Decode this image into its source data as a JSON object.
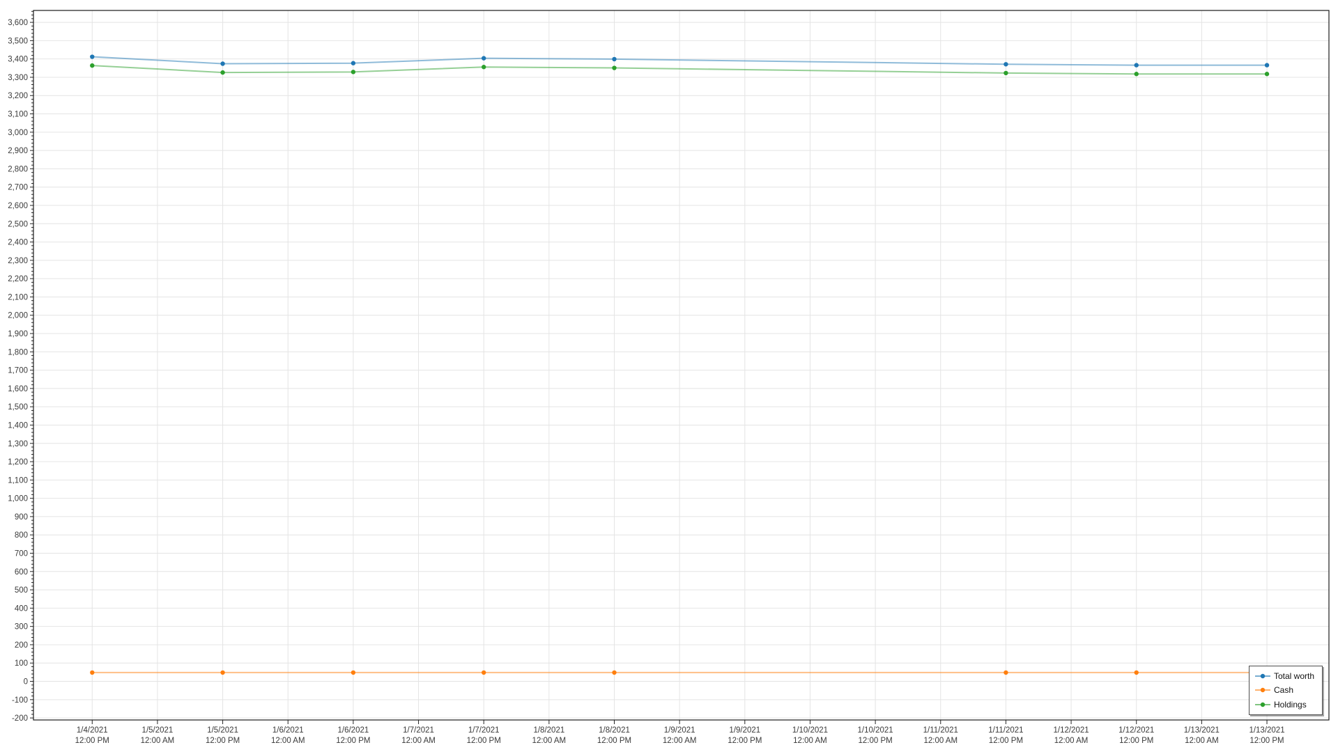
{
  "chart_data": {
    "type": "line",
    "title": "",
    "xlabel": "",
    "ylabel": "",
    "x_axis": {
      "index_min": -0.9,
      "index_max": 18.95,
      "grid": true,
      "tick_labels": [
        {
          "date": "1/4/2021",
          "time": "12:00 PM"
        },
        {
          "date": "1/5/2021",
          "time": "12:00 AM"
        },
        {
          "date": "1/5/2021",
          "time": "12:00 PM"
        },
        {
          "date": "1/6/2021",
          "time": "12:00 AM"
        },
        {
          "date": "1/6/2021",
          "time": "12:00 PM"
        },
        {
          "date": "1/7/2021",
          "time": "12:00 AM"
        },
        {
          "date": "1/7/2021",
          "time": "12:00 PM"
        },
        {
          "date": "1/8/2021",
          "time": "12:00 AM"
        },
        {
          "date": "1/8/2021",
          "time": "12:00 PM"
        },
        {
          "date": "1/9/2021",
          "time": "12:00 AM"
        },
        {
          "date": "1/9/2021",
          "time": "12:00 PM"
        },
        {
          "date": "1/10/2021",
          "time": "12:00 AM"
        },
        {
          "date": "1/10/2021",
          "time": "12:00 PM"
        },
        {
          "date": "1/11/2021",
          "time": "12:00 AM"
        },
        {
          "date": "1/11/2021",
          "time": "12:00 PM"
        },
        {
          "date": "1/12/2021",
          "time": "12:00 AM"
        },
        {
          "date": "1/12/2021",
          "time": "12:00 PM"
        },
        {
          "date": "1/13/2021",
          "time": "12:00 AM"
        },
        {
          "date": "1/13/2021",
          "time": "12:00 PM"
        }
      ]
    },
    "y_axis": {
      "label_min": -200,
      "label_max": 3600,
      "step": 100,
      "minor_step": 20,
      "value_min": -211,
      "value_max": 3665,
      "grid": true
    },
    "series": [
      {
        "name": "Total worth",
        "color": "#1f77b4",
        "x_index": [
          0,
          2,
          4,
          6,
          8,
          14,
          16,
          18
        ],
        "values": [
          3412,
          3374,
          3377,
          3404,
          3399,
          3371,
          3366,
          3366
        ]
      },
      {
        "name": "Cash",
        "color": "#ff7f0e",
        "x_index": [
          0,
          2,
          4,
          6,
          8,
          14,
          16,
          18
        ],
        "values": [
          48,
          48,
          48,
          48,
          48,
          48,
          48,
          48
        ]
      },
      {
        "name": "Holdings",
        "color": "#2ca02c",
        "x_index": [
          0,
          2,
          4,
          6,
          8,
          14,
          16,
          18
        ],
        "values": [
          3364,
          3326,
          3329,
          3356,
          3351,
          3323,
          3318,
          3318
        ]
      }
    ],
    "legend": {
      "position": "bottom-right"
    }
  },
  "colors": {
    "background": "#ffffff",
    "gridline": "#e4e4e4",
    "plot_border": "#1a1a1a",
    "tick": "#222222",
    "tick_label": "#3a3a3a",
    "legend_border": "#4c4c4c"
  }
}
